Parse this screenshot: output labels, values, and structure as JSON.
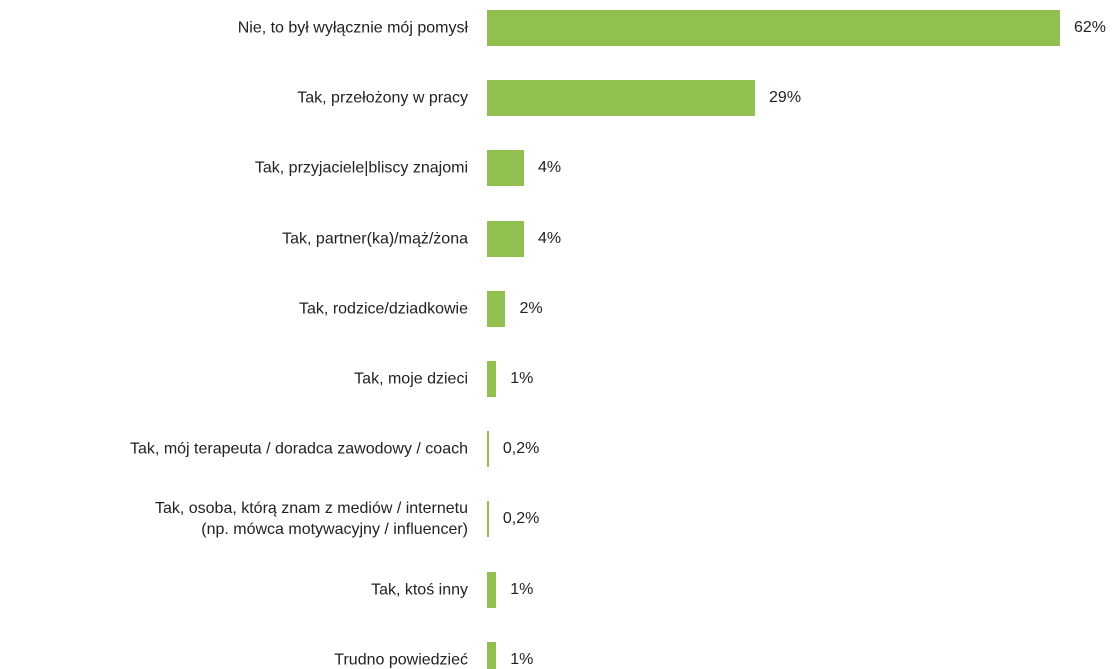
{
  "chart_data": {
    "type": "bar",
    "orientation": "horizontal",
    "color": "#92c050",
    "categories": [
      "Nie, to był wyłącznie mój pomysł",
      "Tak, przełożony w pracy",
      "Tak, przyjaciele|bliscy znajomi",
      "Tak, partner(ka)/mąż/żona",
      "Tak, rodzice/dziadkowie",
      "Tak, moje dzieci",
      "Tak, mój terapeuta / doradca zawodowy / coach",
      "Tak, osoba, którą znam z mediów / internetu\n(np. mówca motywacyjny / influencer)",
      "Tak, ktoś inny",
      "Trudno powiedzieć"
    ],
    "values": [
      62,
      29,
      4,
      4,
      2,
      1,
      0.2,
      0.2,
      1,
      1
    ],
    "value_labels": [
      "62%",
      "29%",
      "4%",
      "4%",
      "2%",
      "1%",
      "0,2%",
      "0,2%",
      "1%",
      "1%"
    ]
  }
}
